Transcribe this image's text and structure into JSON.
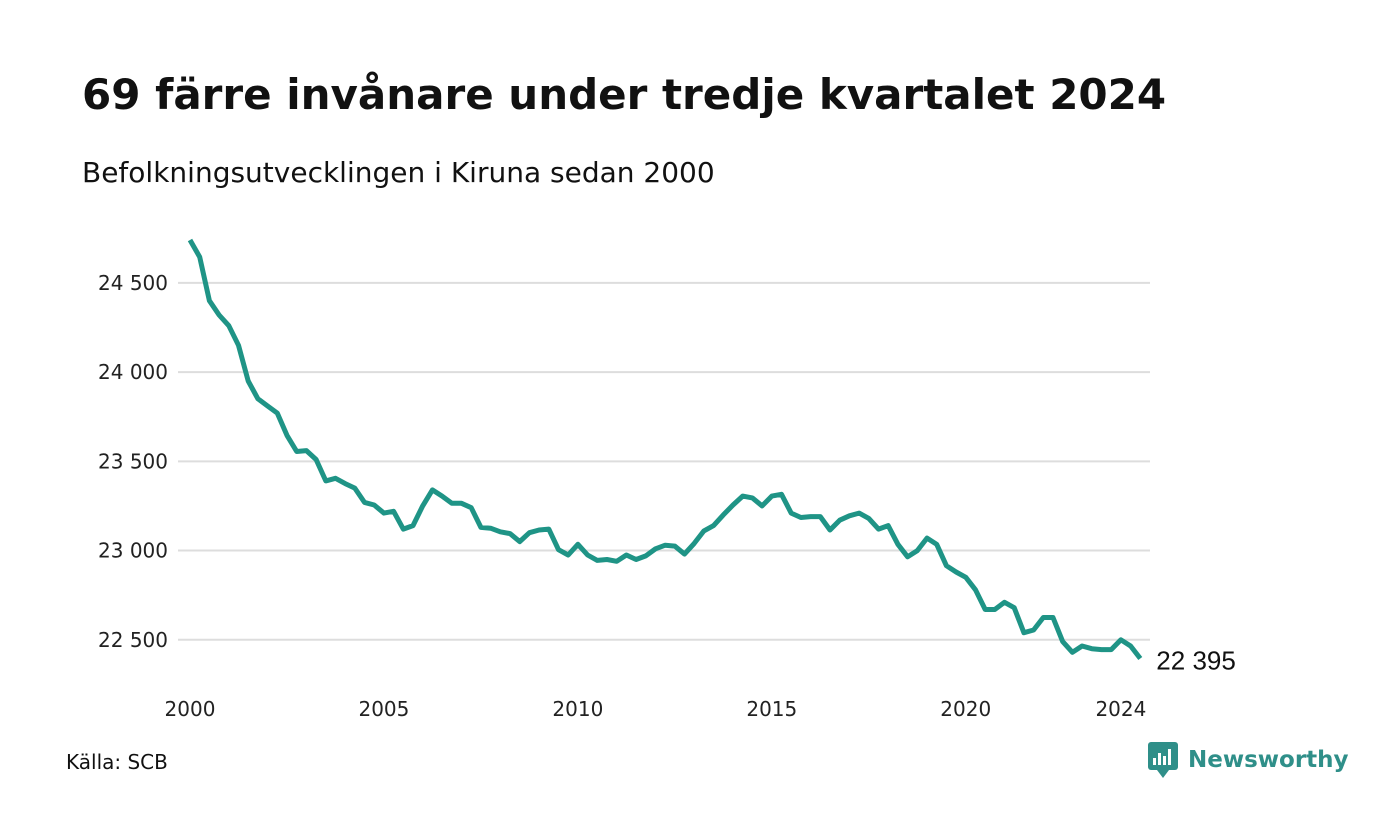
{
  "title": "69 färre invånare under tredje kvartalet 2024",
  "subtitle": "Befolkningsutvecklingen i Kiruna sedan 2000",
  "source": "Källa: SCB",
  "brand": {
    "name": "Newsworthy",
    "icon": "newsworthy-logo-icon"
  },
  "colors": {
    "line": "#1f9486",
    "grid": "#dddddd",
    "brand": "#2f8f89"
  },
  "chart_data": {
    "type": "line",
    "title": "69 färre invånare under tredje kvartalet 2024",
    "subtitle": "Befolkningsutvecklingen i Kiruna sedan 2000",
    "xlabel": "",
    "ylabel": "",
    "xlim": [
      2000,
      2024.75
    ],
    "ylim": [
      22370,
      24740
    ],
    "grid": "horizontal",
    "x_ticks": [
      2000,
      2005,
      2010,
      2015,
      2020,
      2024
    ],
    "y_ticks": [
      {
        "value": 22500,
        "label": "22 500"
      },
      {
        "value": 23000,
        "label": "23 000"
      },
      {
        "value": 23500,
        "label": "23 500"
      },
      {
        "value": 24000,
        "label": "24 000"
      },
      {
        "value": 24500,
        "label": "24 500"
      }
    ],
    "end_label": "22 395",
    "x": [
      2000.0,
      2000.25,
      2000.5,
      2000.75,
      2001.0,
      2001.25,
      2001.5,
      2001.75,
      2002.0,
      2002.25,
      2002.5,
      2002.75,
      2003.0,
      2003.25,
      2003.5,
      2003.75,
      2004.0,
      2004.25,
      2004.5,
      2004.75,
      2005.0,
      2005.25,
      2005.5,
      2005.75,
      2006.0,
      2006.25,
      2006.5,
      2006.75,
      2007.0,
      2007.25,
      2007.5,
      2007.75,
      2008.0,
      2008.25,
      2008.5,
      2008.75,
      2009.0,
      2009.25,
      2009.5,
      2009.75,
      2010.0,
      2010.25,
      2010.5,
      2010.75,
      2011.0,
      2011.25,
      2011.5,
      2011.75,
      2012.0,
      2012.25,
      2012.5,
      2012.75,
      2013.0,
      2013.25,
      2013.5,
      2013.75,
      2014.0,
      2014.25,
      2014.5,
      2014.75,
      2015.0,
      2015.25,
      2015.5,
      2015.75,
      2016.0,
      2016.25,
      2016.5,
      2016.75,
      2017.0,
      2017.25,
      2017.5,
      2017.75,
      2018.0,
      2018.25,
      2018.5,
      2018.75,
      2019.0,
      2019.25,
      2019.5,
      2019.75,
      2020.0,
      2020.25,
      2020.5,
      2020.75,
      2021.0,
      2021.25,
      2021.5,
      2021.75,
      2022.0,
      2022.25,
      2022.5,
      2022.75,
      2023.0,
      2023.25,
      2023.5,
      2023.75,
      2024.0,
      2024.25,
      2024.5
    ],
    "series": [
      {
        "values": [
          24740,
          24645,
          24400,
          24320,
          24260,
          24150,
          23950,
          23850,
          23810,
          23770,
          23645,
          23555,
          23560,
          23510,
          23390,
          23405,
          23375,
          23350,
          23270,
          23255,
          23210,
          23220,
          23120,
          23140,
          23250,
          23340,
          23305,
          23265,
          23265,
          23240,
          23130,
          23125,
          23105,
          23095,
          23050,
          23100,
          23115,
          23120,
          23005,
          22975,
          23035,
          22975,
          22945,
          22950,
          22940,
          22975,
          22950,
          22970,
          23010,
          23030,
          23025,
          22980,
          23040,
          23110,
          23140,
          23200,
          23255,
          23305,
          23295,
          23250,
          23305,
          23315,
          23210,
          23185,
          23190,
          23190,
          23115,
          23170,
          23195,
          23210,
          23180,
          23120,
          23140,
          23035,
          22965,
          23000,
          23070,
          23035,
          22915,
          22880,
          22850,
          22780,
          22670,
          22670,
          22710,
          22680,
          22540,
          22555,
          22625,
          22625,
          22490,
          22430,
          22465,
          22450,
          22445,
          22445,
          22500,
          22465,
          22395
        ]
      }
    ]
  }
}
